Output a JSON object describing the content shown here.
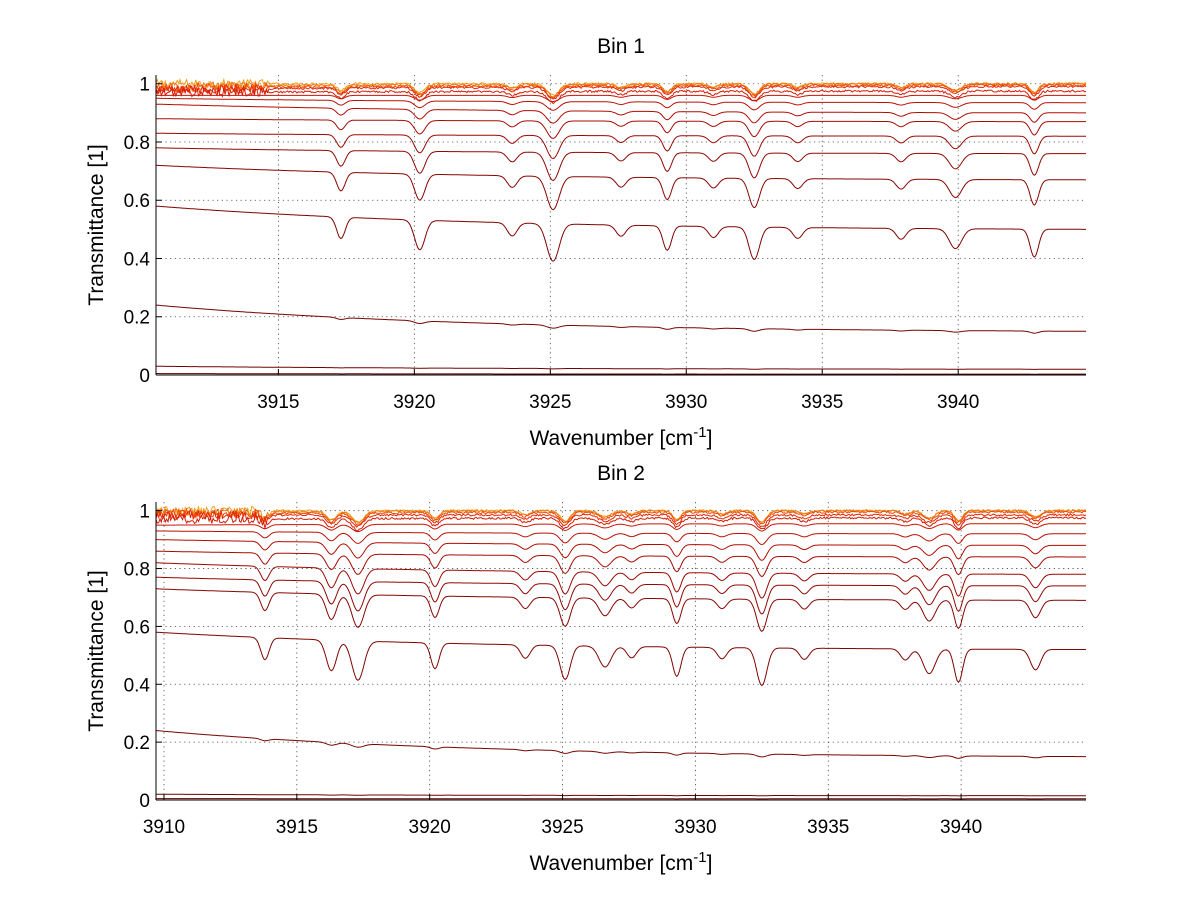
{
  "chart_data": [
    {
      "type": "line",
      "title": "Bin 1",
      "xlabel": "Wavenumber [cm",
      "xlabel_sup": "-1",
      "xlabel_end": "]",
      "ylabel": "Transmittance [1]",
      "xlim": [
        3910.5,
        3944.7
      ],
      "ylim": [
        0,
        1.03
      ],
      "x_ticks": [
        3915,
        3920,
        3925,
        3930,
        3935,
        3940
      ],
      "y_ticks": [
        0,
        0.2,
        0.4,
        0.6,
        0.8,
        1
      ],
      "grid": true,
      "absorption_lines": [
        3917.3,
        3920.2,
        3925.1,
        3929.3,
        3932.5,
        3939.9,
        3942.8
      ],
      "series": [
        {
          "baseline_start": 1.0,
          "baseline_end": 1.0,
          "color": "#f0a020"
        },
        {
          "baseline_start": 0.99,
          "baseline_end": 1.0,
          "color": "#f07a10"
        },
        {
          "baseline_start": 0.985,
          "baseline_end": 0.995,
          "color": "#ee4a0a"
        },
        {
          "baseline_start": 0.98,
          "baseline_end": 0.99,
          "color": "#e52a08"
        },
        {
          "baseline_start": 0.97,
          "baseline_end": 0.975,
          "color": "#d61c06"
        },
        {
          "baseline_start": 0.96,
          "baseline_end": 0.96,
          "color": "#c81505"
        },
        {
          "baseline_start": 0.95,
          "baseline_end": 0.935,
          "color": "#bb1004"
        },
        {
          "baseline_start": 0.93,
          "baseline_end": 0.9,
          "color": "#b00d03"
        },
        {
          "baseline_start": 0.88,
          "baseline_end": 0.87,
          "color": "#a50b03"
        },
        {
          "baseline_start": 0.83,
          "baseline_end": 0.82,
          "color": "#9a0902"
        },
        {
          "baseline_start": 0.78,
          "baseline_end": 0.76,
          "color": "#900802"
        },
        {
          "baseline_start": 0.72,
          "baseline_end": 0.67,
          "color": "#860602"
        },
        {
          "baseline_start": 0.58,
          "baseline_end": 0.5,
          "color": "#7e0501"
        },
        {
          "baseline_start": 0.24,
          "baseline_end": 0.15,
          "color": "#760401"
        },
        {
          "baseline_start": 0.03,
          "baseline_end": 0.02,
          "color": "#6e0301"
        },
        {
          "baseline_start": 0.005,
          "baseline_end": 0.003,
          "color": "#660201"
        }
      ]
    },
    {
      "type": "line",
      "title": "Bin 2",
      "xlabel": "Wavenumber [cm",
      "xlabel_sup": "-1",
      "xlabel_end": "]",
      "ylabel": "Transmittance [1]",
      "xlim": [
        3909.7,
        3944.7
      ],
      "ylim": [
        0,
        1.03
      ],
      "x_ticks": [
        3910,
        3915,
        3920,
        3925,
        3930,
        3935,
        3940
      ],
      "y_ticks": [
        0,
        0.2,
        0.4,
        0.6,
        0.8,
        1
      ],
      "grid": true,
      "absorption_lines": [
        3913.8,
        3916.3,
        3917.3,
        3920.2,
        3925.1,
        3926.6,
        3929.3,
        3932.5,
        3938.8,
        3939.9,
        3942.8
      ],
      "series": [
        {
          "baseline_start": 1.0,
          "baseline_end": 1.0,
          "color": "#f0a020"
        },
        {
          "baseline_start": 0.995,
          "baseline_end": 1.0,
          "color": "#f07a10"
        },
        {
          "baseline_start": 0.99,
          "baseline_end": 0.995,
          "color": "#ee4a0a"
        },
        {
          "baseline_start": 0.985,
          "baseline_end": 0.985,
          "color": "#e52a08"
        },
        {
          "baseline_start": 0.97,
          "baseline_end": 0.975,
          "color": "#d61c06"
        },
        {
          "baseline_start": 0.95,
          "baseline_end": 0.955,
          "color": "#c81505"
        },
        {
          "baseline_start": 0.93,
          "baseline_end": 0.92,
          "color": "#bb1004"
        },
        {
          "baseline_start": 0.9,
          "baseline_end": 0.88,
          "color": "#b00d03"
        },
        {
          "baseline_start": 0.86,
          "baseline_end": 0.84,
          "color": "#a50b03"
        },
        {
          "baseline_start": 0.82,
          "baseline_end": 0.78,
          "color": "#9a0902"
        },
        {
          "baseline_start": 0.77,
          "baseline_end": 0.74,
          "color": "#900802"
        },
        {
          "baseline_start": 0.73,
          "baseline_end": 0.69,
          "color": "#860602"
        },
        {
          "baseline_start": 0.58,
          "baseline_end": 0.52,
          "color": "#7e0501"
        },
        {
          "baseline_start": 0.24,
          "baseline_end": 0.15,
          "color": "#760401"
        },
        {
          "baseline_start": 0.02,
          "baseline_end": 0.015,
          "color": "#6e0301"
        },
        {
          "baseline_start": 0.005,
          "baseline_end": 0.004,
          "color": "#660201"
        }
      ]
    }
  ]
}
